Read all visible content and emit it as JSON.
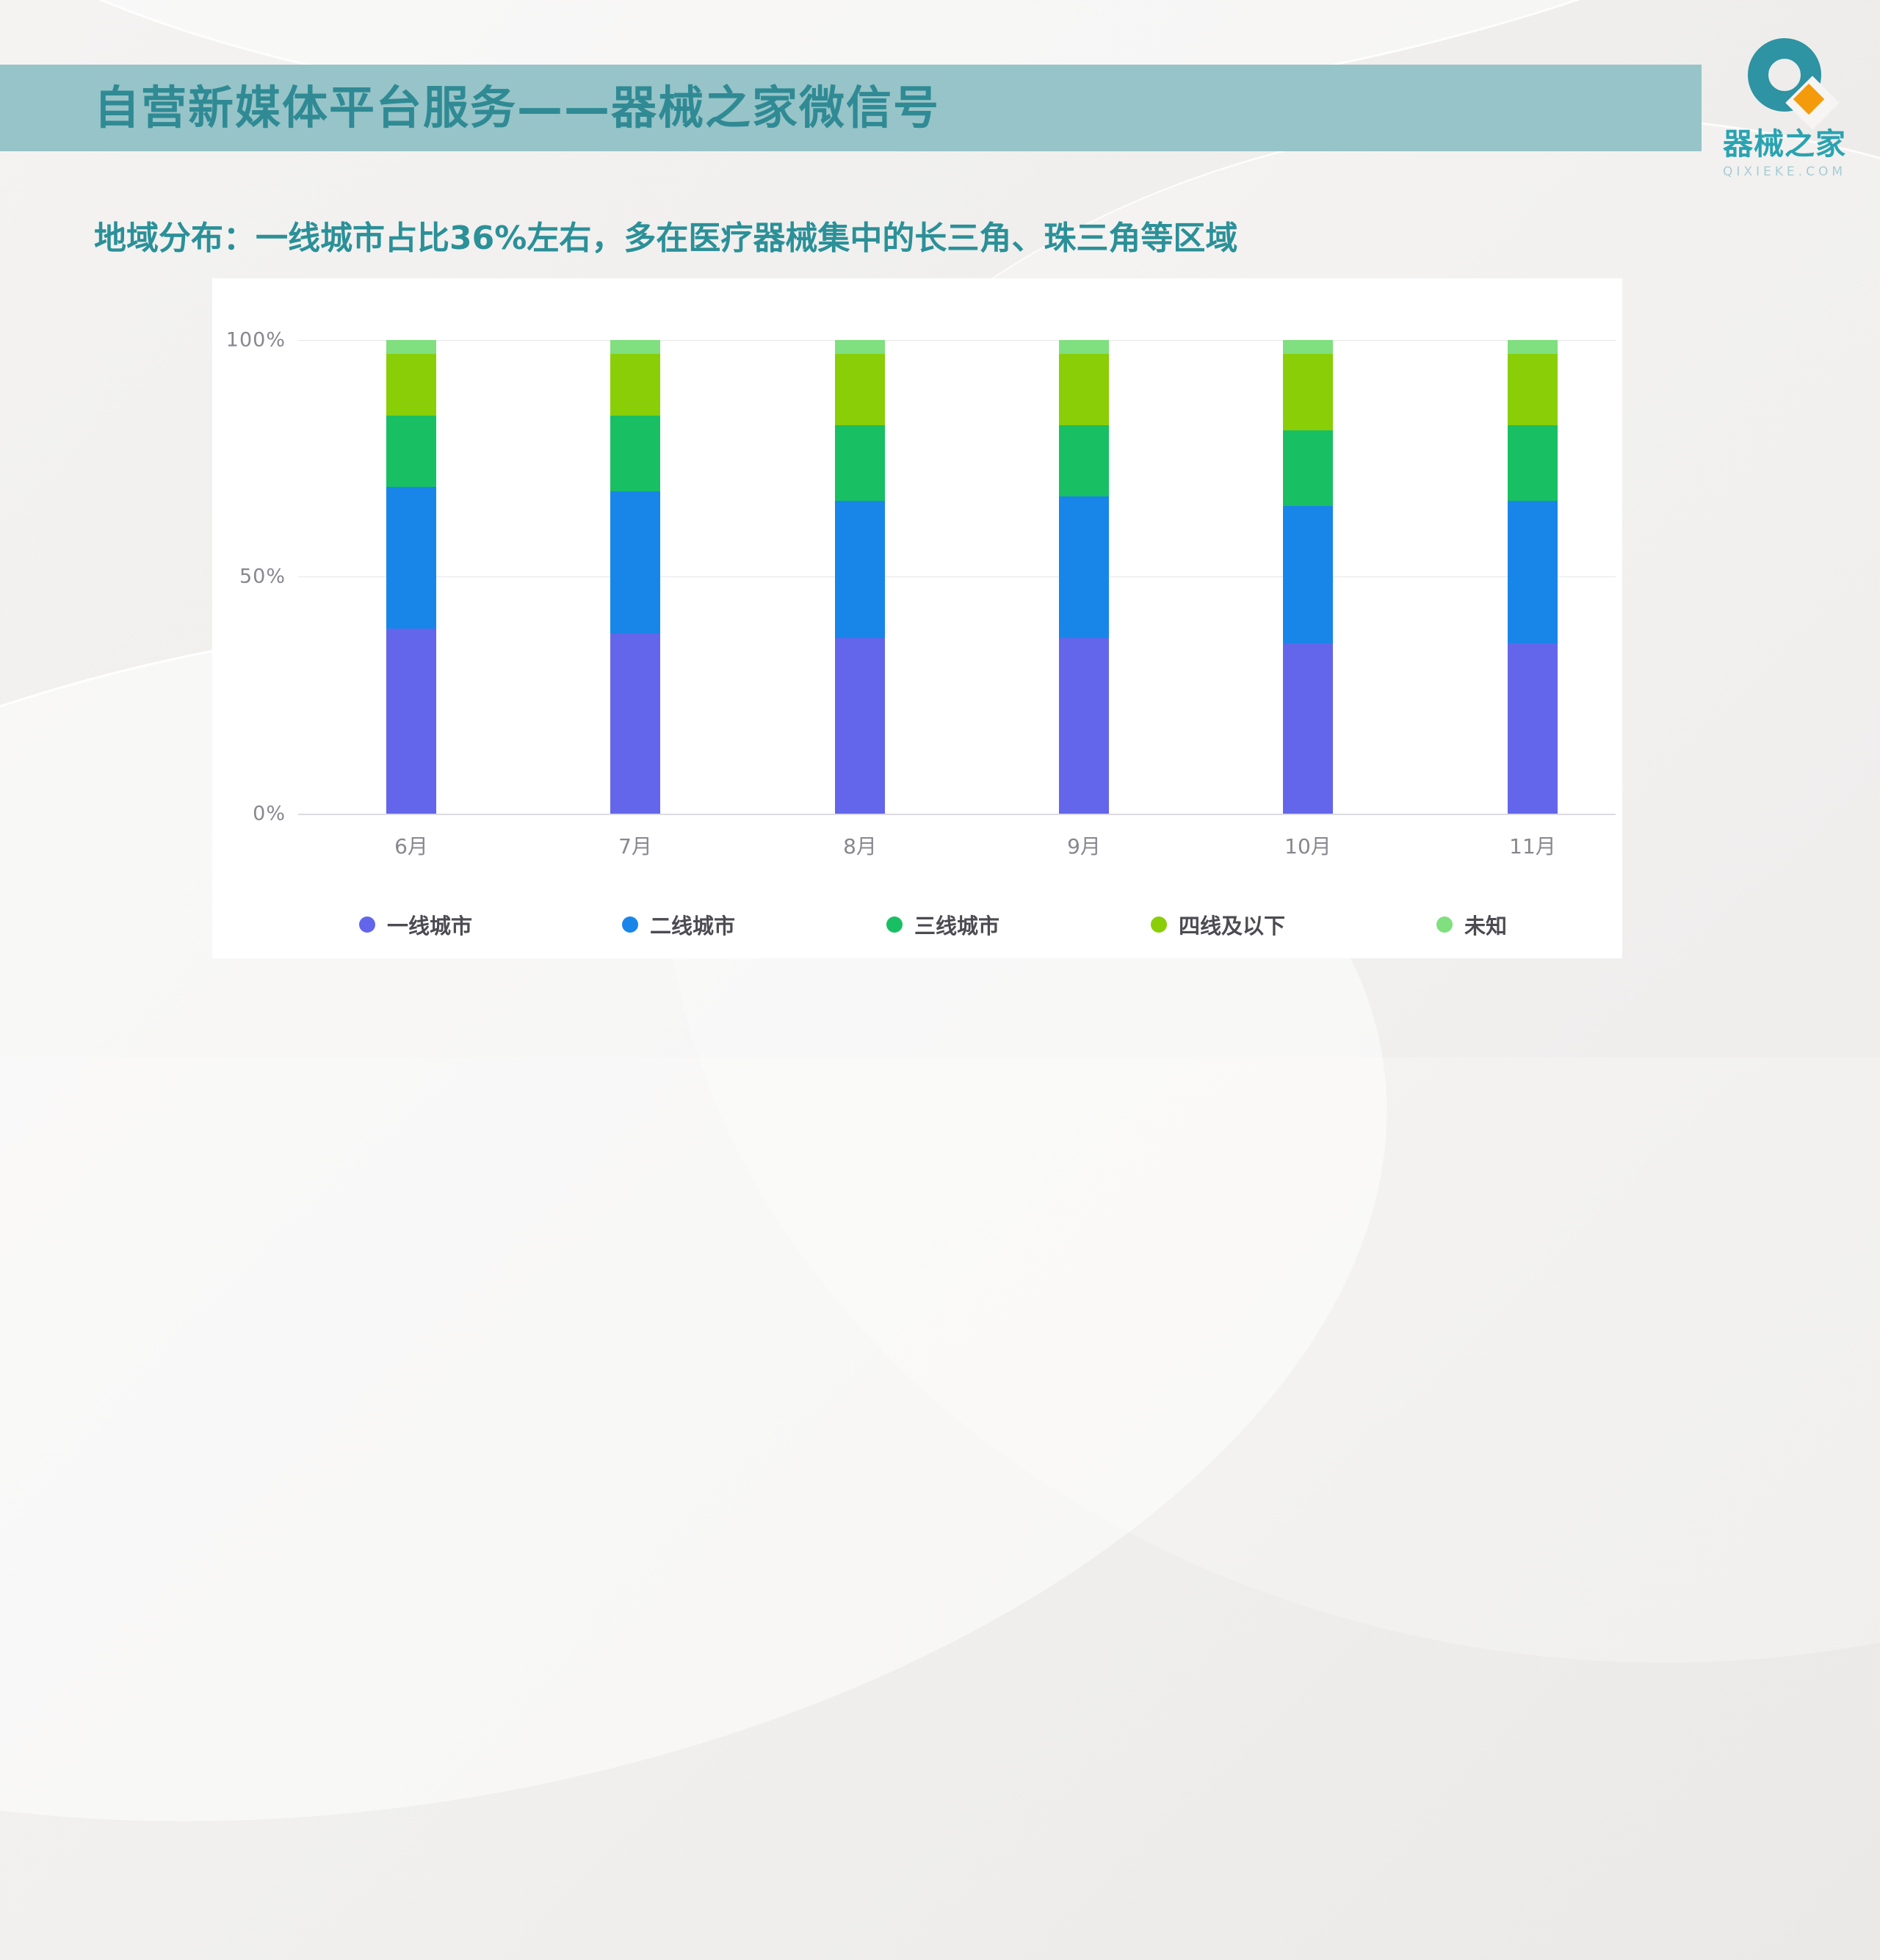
{
  "slide": {
    "header": {
      "title": "自营新媒体平台服务——器械之家微信号"
    },
    "logo": {
      "wordmark": "器械之家",
      "domain": "QIXIEKE.COM"
    },
    "subtitle": "地域分布：一线城市占比36%左右，多在医疗器械集中的长三角、珠三角等区域"
  },
  "chart_data": {
    "type": "bar",
    "subtype": "stacked-100-percent",
    "categories": [
      "6月",
      "7月",
      "8月",
      "9月",
      "10月",
      "11月"
    ],
    "series": [
      {
        "name": "一线城市",
        "color": "#6366ea",
        "values": [
          39,
          38,
          37,
          37,
          36,
          36
        ]
      },
      {
        "name": "二线城市",
        "color": "#1886e9",
        "values": [
          30,
          30,
          29,
          30,
          29,
          30
        ]
      },
      {
        "name": "三线城市",
        "color": "#19bf63",
        "values": [
          15,
          16,
          16,
          15,
          16,
          16
        ]
      },
      {
        "name": "四线及以下",
        "color": "#89ce07",
        "values": [
          13,
          13,
          15,
          15,
          16,
          15
        ]
      },
      {
        "name": "未知",
        "color": "#80df7e",
        "values": [
          3,
          3,
          3,
          3,
          3,
          3
        ]
      }
    ],
    "yticks": [
      "100%",
      "50%",
      "0%"
    ],
    "ylim": [
      0,
      100
    ],
    "unit": "%",
    "grid": "horizontal",
    "legend_position": "bottom"
  },
  "colors": {
    "banner_bg": "#97c4c8",
    "banner_text": "#2f8a94",
    "subtitle_text": "#2b9098",
    "panel_bg": "#ffffff",
    "gridline": "#e7e7ea",
    "axis_text": "#87878f",
    "legend_text": "#4b4b52",
    "logo_teal": "#2e93a3",
    "logo_orange": "#f49b0c",
    "logo_wordmark_text": "#2aa3b1",
    "logo_domain_text": "#a5cdd3"
  }
}
